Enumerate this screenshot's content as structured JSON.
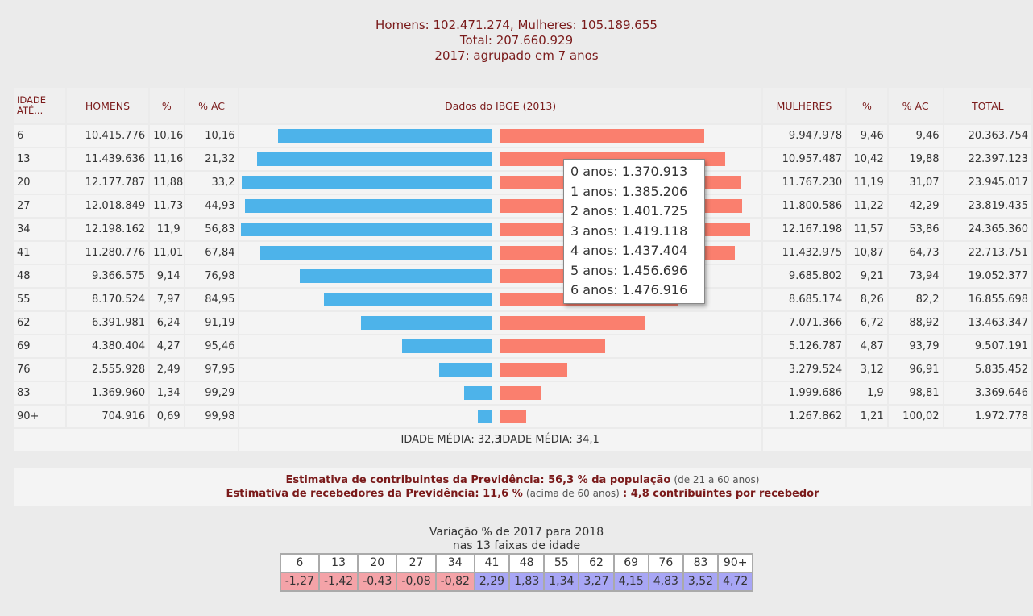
{
  "header": {
    "line1": "Homens: 102.471.274, Mulheres: 105.189.655",
    "line2": "Total: 207.660.929",
    "line3": "2017: agrupado em 7 anos"
  },
  "table": {
    "columns": [
      "IDADE ATÉ...",
      "HOMENS",
      "%",
      "% AC",
      "Dados do IBGE (2013)",
      "MULHERES",
      "%",
      "% AC",
      "TOTAL"
    ],
    "rows": [
      [
        "6",
        "10.415.776",
        "10,16",
        "10,16",
        "9.947.978",
        "9,46",
        "9,46",
        "20.363.754"
      ],
      [
        "13",
        "11.439.636",
        "11,16",
        "21,32",
        "10.957.487",
        "10,42",
        "19,88",
        "22.397.123"
      ],
      [
        "20",
        "12.177.787",
        "11,88",
        "33,2",
        "11.767.230",
        "11,19",
        "31,07",
        "23.945.017"
      ],
      [
        "27",
        "12.018.849",
        "11,73",
        "44,93",
        "11.800.586",
        "11,22",
        "42,29",
        "23.819.435"
      ],
      [
        "34",
        "12.198.162",
        "11,9",
        "56,83",
        "12.167.198",
        "11,57",
        "53,86",
        "24.365.360"
      ],
      [
        "41",
        "11.280.776",
        "11,01",
        "67,84",
        "11.432.975",
        "10,87",
        "64,73",
        "22.713.751"
      ],
      [
        "48",
        "9.366.575",
        "9,14",
        "76,98",
        "9.685.802",
        "9,21",
        "73,94",
        "19.052.377"
      ],
      [
        "55",
        "8.170.524",
        "7,97",
        "84,95",
        "8.685.174",
        "8,26",
        "82,2",
        "16.855.698"
      ],
      [
        "62",
        "6.391.981",
        "6,24",
        "91,19",
        "7.071.366",
        "6,72",
        "88,92",
        "13.463.347"
      ],
      [
        "69",
        "4.380.404",
        "4,27",
        "95,46",
        "5.126.787",
        "4,87",
        "93,79",
        "9.507.191"
      ],
      [
        "76",
        "2.555.928",
        "2,49",
        "97,95",
        "3.279.524",
        "3,12",
        "96,91",
        "5.835.452"
      ],
      [
        "83",
        "1.369.960",
        "1,34",
        "99,29",
        "1.999.686",
        "1,9",
        "98,81",
        "3.369.646"
      ],
      [
        "90+",
        "704.916",
        "0,69",
        "99,98",
        "1.267.862",
        "1,21",
        "100,02",
        "1.972.778"
      ]
    ],
    "mean_men": "IDADE MÉDIA: 32,3",
    "mean_women": "IDADE MÉDIA: 34,1"
  },
  "tooltip": [
    "0 anos: 1.370.913",
    "1 anos: 1.385.206",
    "2 anos: 1.401.725",
    "3 anos: 1.419.118",
    "4 anos: 1.437.404",
    "5 anos: 1.456.696",
    "6 anos: 1.476.916"
  ],
  "notes": {
    "line1_bold": "Estimativa de contribuintes da Previdência: 56,3 % da população",
    "line1_normal": "(de 21 a 60 anos)",
    "line2_bold": "Estimativa de recebedores da Previdência: 11,6 %",
    "line2_normal": "(acima de 60 anos)",
    "line2_bold2": ": 4,8 contribuintes por recebedor"
  },
  "variation": {
    "title": "Variação % de 2017 para 2018",
    "subtitle": "nas 13 faixas de idade",
    "headers": [
      "6",
      "13",
      "20",
      "27",
      "34",
      "41",
      "48",
      "55",
      "62",
      "69",
      "76",
      "83",
      "90+"
    ],
    "values": [
      "-1,27",
      "-1,42",
      "-0,43",
      "-0,08",
      "-0,82",
      "2,29",
      "1,83",
      "1,34",
      "3,27",
      "4,15",
      "4,83",
      "3,52",
      "4,72"
    ]
  }
}
